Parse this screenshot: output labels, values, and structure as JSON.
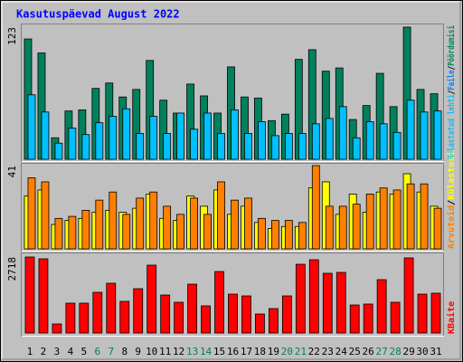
{
  "legend_separator": "/",
  "chart_data": [
    {
      "type": "bar",
      "title": "Kasutuspäevad August 2022",
      "ylim": [
        0,
        123
      ],
      "yticks": [
        123
      ],
      "series": [
        {
          "name": "Pöördumisi",
          "color": "#00805c",
          "values": [
            112,
            99,
            20,
            45,
            46,
            66,
            71,
            58,
            65,
            92,
            55,
            43,
            70,
            59,
            43,
            86,
            58,
            57,
            36,
            42,
            93,
            102,
            82,
            85,
            37,
            50,
            80,
            49,
            123,
            65,
            61
          ]
        },
        {
          "name": "Külastatud lehti",
          "color": "#00c0ff",
          "values": [
            60,
            44,
            15,
            29,
            23,
            34,
            40,
            47,
            24,
            40,
            24,
            43,
            28,
            43,
            24,
            46,
            24,
            35,
            22,
            24,
            24,
            33,
            38,
            49,
            20,
            35,
            33,
            25,
            55,
            44,
            45
          ]
        }
      ],
      "legend_extra": {
        "name": "Faile",
        "color": "#0080ff"
      }
    },
    {
      "type": "bar",
      "ylim": [
        0,
        41
      ],
      "yticks": [
        41
      ],
      "series": [
        {
          "name": "Külastusi",
          "color": "#ffff00",
          "values": [
            26,
            29,
            12,
            14,
            15,
            18,
            19,
            18,
            20,
            27,
            15,
            14,
            26,
            21,
            29,
            17,
            21,
            13,
            10,
            11,
            11,
            30,
            33,
            17,
            27,
            18,
            28,
            27,
            37,
            28,
            21
          ]
        },
        {
          "name": "Arvuteid",
          "color": "#ff8000",
          "values": [
            35,
            33,
            15,
            16,
            19,
            24,
            28,
            17,
            25,
            28,
            21,
            17,
            25,
            17,
            33,
            24,
            25,
            15,
            14,
            14,
            13,
            41,
            21,
            21,
            22,
            27,
            30,
            29,
            32,
            32,
            20
          ]
        }
      ]
    },
    {
      "type": "bar",
      "ylim": [
        0,
        2718
      ],
      "yticks": [
        2718
      ],
      "categories": [
        "1",
        "2",
        "3",
        "4",
        "5",
        "6",
        "7",
        "8",
        "9",
        "10",
        "11",
        "12",
        "13",
        "14",
        "15",
        "16",
        "17",
        "18",
        "19",
        "20",
        "21",
        "22",
        "23",
        "24",
        "25",
        "26",
        "27",
        "28",
        "29",
        "30",
        "31"
      ],
      "weekend_days": [
        "6",
        "7",
        "13",
        "14",
        "20",
        "21",
        "27",
        "28"
      ],
      "weekend_color": "#00805c",
      "series": [
        {
          "name": "KBaite",
          "color": "#ff0000",
          "values": [
            2718,
            2654,
            324,
            1068,
            1068,
            1456,
            1780,
            1133,
            1586,
            2427,
            1359,
            1100,
            1747,
            971,
            2200,
            1391,
            1327,
            680,
            874,
            1327,
            2459,
            2621,
            2136,
            2168,
            1003,
            1036,
            1909,
            1100,
            2686,
            1391,
            1424
          ]
        }
      ]
    }
  ]
}
